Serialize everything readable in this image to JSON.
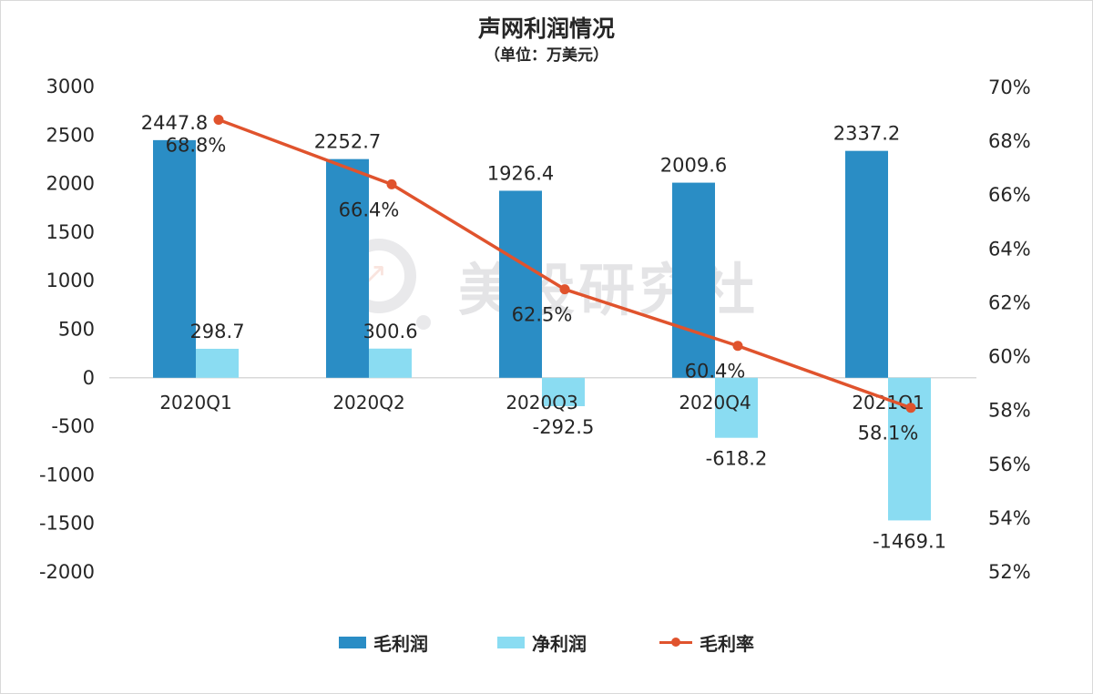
{
  "chart_data": {
    "type": "bar",
    "title": "声网利润情况",
    "subtitle": "（单位：万美元）",
    "categories": [
      "2020Q1",
      "2020Q2",
      "2020Q3",
      "2020Q4",
      "2021Q1"
    ],
    "series": [
      {
        "name": "毛利润",
        "type": "bar",
        "axis": "left",
        "color": "#2a8dc5",
        "values": [
          2447.8,
          2252.7,
          1926.4,
          2009.6,
          2337.2
        ],
        "labels": [
          "2447.8",
          "2252.7",
          "1926.4",
          "2009.6",
          "2337.2"
        ]
      },
      {
        "name": "净利润",
        "type": "bar",
        "axis": "left",
        "color": "#8adcf2",
        "values": [
          298.7,
          300.6,
          -292.5,
          -618.2,
          -1469.1
        ],
        "labels": [
          "298.7",
          "300.6",
          "-292.5",
          "-618.2",
          "-1469.1"
        ]
      },
      {
        "name": "毛利率",
        "type": "line",
        "axis": "right",
        "color": "#e0532d",
        "values": [
          68.8,
          66.4,
          62.5,
          60.4,
          58.1
        ],
        "labels": [
          "68.8%",
          "66.4%",
          "62.5%",
          "60.4%",
          "58.1%"
        ]
      }
    ],
    "ylim": [
      -2000,
      3000
    ],
    "yticks": [
      "3000",
      "2500",
      "2000",
      "1500",
      "1000",
      "500",
      "0",
      "-500",
      "-1000",
      "-1500",
      "-2000"
    ],
    "y2lim": [
      52,
      70
    ],
    "y2ticks": [
      "70%",
      "68%",
      "66%",
      "64%",
      "62%",
      "60%",
      "58%",
      "56%",
      "54%",
      "52%"
    ],
    "grid": false,
    "legend_position": "bottom"
  },
  "watermark": {
    "text": "美股研究社"
  }
}
